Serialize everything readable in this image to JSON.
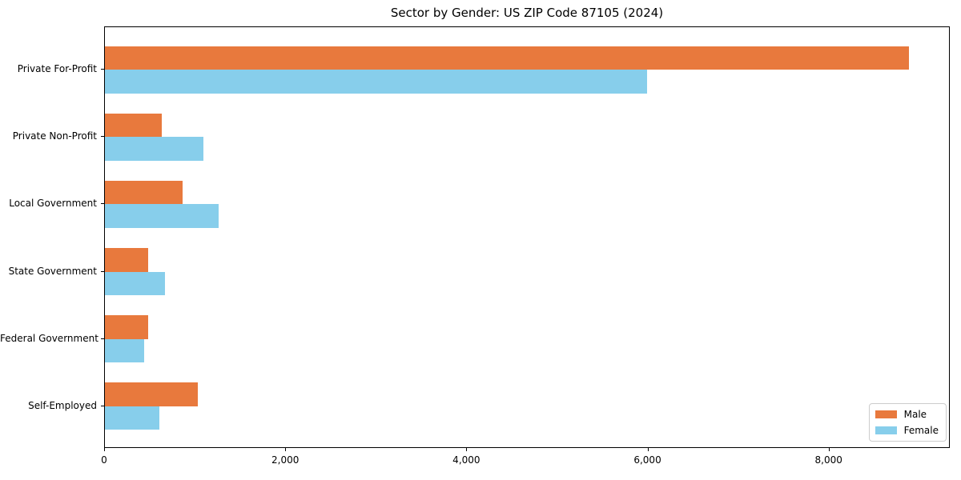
{
  "chart_data": {
    "type": "bar",
    "orientation": "horizontal",
    "title": "Sector by Gender: US ZIP Code 87105 (2024)",
    "categories": [
      "Private For-Profit",
      "Private Non-Profit",
      "Local Government",
      "State Government",
      "Federal Government",
      "Self-Employed"
    ],
    "series": [
      {
        "name": "Male",
        "color": "#e8793d",
        "values": [
          8880,
          630,
          860,
          480,
          480,
          1030
        ]
      },
      {
        "name": "Female",
        "color": "#87ceeb",
        "values": [
          5990,
          1090,
          1260,
          660,
          430,
          600
        ]
      }
    ],
    "xlim": [
      0,
      9320
    ],
    "xticks": [
      0,
      2000,
      4000,
      6000,
      8000
    ],
    "xtick_labels": [
      "0",
      "2,000",
      "4,000",
      "6,000",
      "8,000"
    ],
    "ylabel": "",
    "xlabel": "",
    "grid": false,
    "legend": {
      "position": "lower right",
      "entries": [
        "Male",
        "Female"
      ]
    }
  }
}
